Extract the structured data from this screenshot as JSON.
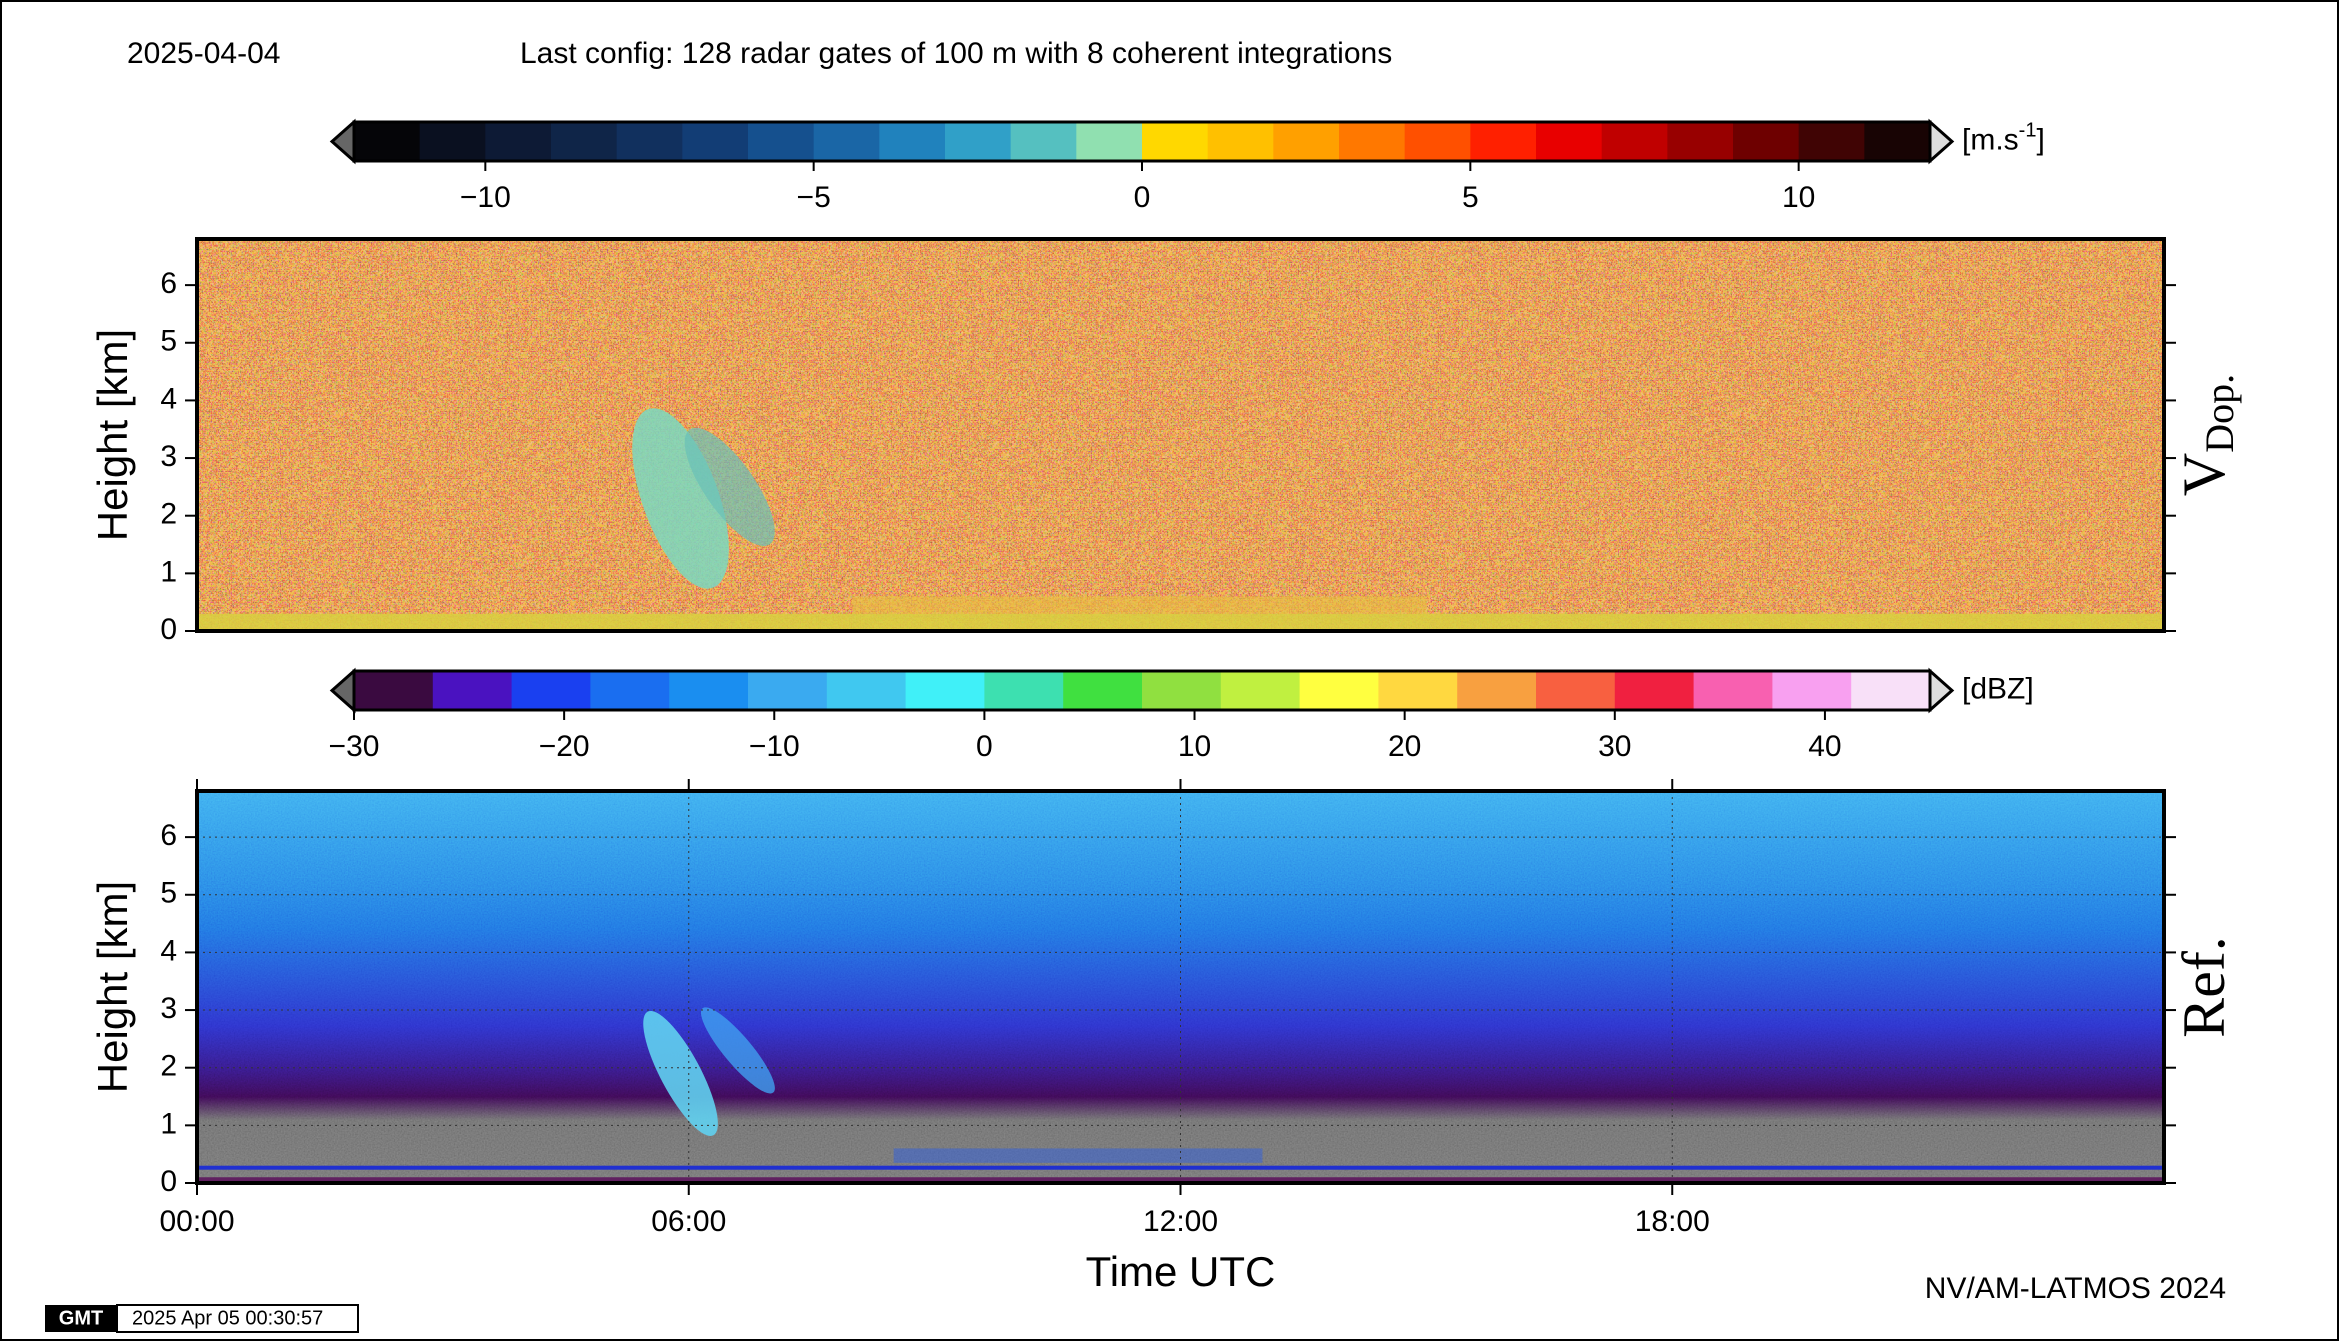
{
  "header": {
    "date": "2025-04-04",
    "config": "Last config: 128 radar gates of 100 m with 8 coherent integrations"
  },
  "chart_data": [
    {
      "type": "heatmap",
      "panel_label": "V",
      "panel_label_sub": "Dop.",
      "ylabel": "Height [km]",
      "ylim": [
        0,
        6.8
      ],
      "yticks": [
        0,
        1,
        2,
        3,
        4,
        5,
        6
      ],
      "xlim": [
        0,
        24
      ],
      "colorbar": {
        "unit": "[m.s",
        "unit_sup": "-1",
        "unit_end": "]",
        "clim": [
          -12,
          12
        ],
        "ticks": [
          {
            "value": -10,
            "label": "−10"
          },
          {
            "value": -5,
            "label": "−5"
          },
          0,
          5,
          10
        ],
        "colors": [
          "#050508",
          "#0a1020",
          "#0d1a35",
          "#0f2548",
          "#11305e",
          "#123d75",
          "#15508e",
          "#1a66a6",
          "#2082bd",
          "#30a0c8",
          "#55c0c0",
          "#90e0b0",
          "#ffd800",
          "#ffc000",
          "#ffa000",
          "#ff7800",
          "#ff5000",
          "#ff2000",
          "#e80000",
          "#c00000",
          "#980000",
          "#6e0000",
          "#400404",
          "#180404"
        ]
      }
    },
    {
      "type": "heatmap",
      "panel_label": "Ref.",
      "ylabel": "Height [km]",
      "ylim": [
        0,
        6.8
      ],
      "yticks": [
        0,
        1,
        2,
        3,
        4,
        5,
        6
      ],
      "xlim": [
        0,
        24
      ],
      "xticks": [
        {
          "value": 0,
          "label": "00:00"
        },
        {
          "value": 6,
          "label": "06:00"
        },
        {
          "value": 12,
          "label": "12:00"
        },
        {
          "value": 18,
          "label": "18:00"
        }
      ],
      "xlabel": "Time UTC",
      "grid": true,
      "colorbar": {
        "unit": "[dBZ]",
        "clim": [
          -30,
          45
        ],
        "ticks": [
          {
            "value": -30,
            "label": "−30"
          },
          {
            "value": -20,
            "label": "−20"
          },
          {
            "value": -10,
            "label": "−10"
          },
          0,
          10,
          20,
          30,
          40
        ],
        "colors": [
          "#3a0a40",
          "#4a12c0",
          "#1a40f0",
          "#1a6ef0",
          "#1a8ef0",
          "#3aaaf0",
          "#40c8f0",
          "#40f0f8",
          "#3de0b0",
          "#40e040",
          "#90e040",
          "#c0f040",
          "#ffff40",
          "#ffd840",
          "#f8a040",
          "#f86040",
          "#f02040",
          "#f860b0",
          "#f8a0f0",
          "#f8e0f8"
        ]
      }
    }
  ],
  "footer": {
    "credit": "NV/AM-LATMOS 2024",
    "logo": "GMT",
    "stamp": "2025 Apr 05 00:30:57"
  }
}
